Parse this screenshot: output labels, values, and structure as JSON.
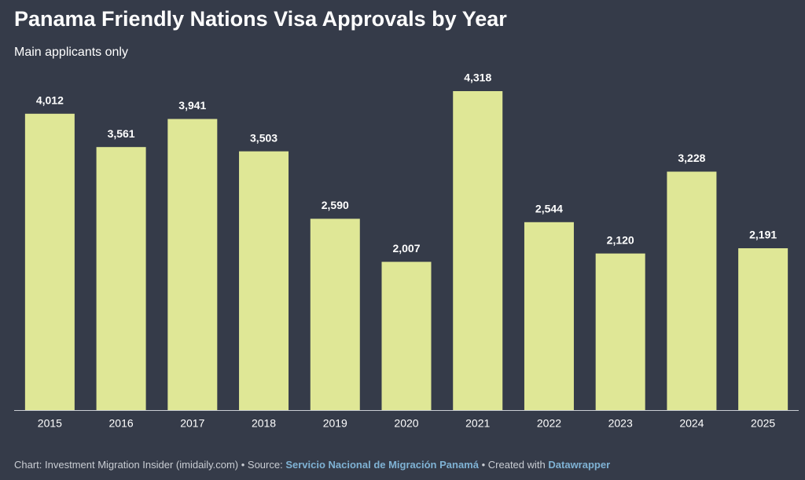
{
  "chart_data": {
    "type": "bar",
    "title": "Panama Friendly Nations Visa Approvals by Year",
    "subtitle": "Main applicants only",
    "categories": [
      "2015",
      "2016",
      "2017",
      "2018",
      "2019",
      "2020",
      "2021",
      "2022",
      "2023",
      "2024",
      "2025"
    ],
    "values": [
      4012,
      3561,
      3941,
      3503,
      2590,
      2007,
      4318,
      2544,
      2120,
      3228,
      2191
    ],
    "value_labels": [
      "4,012",
      "3,561",
      "3,941",
      "3,503",
      "2,590",
      "2,007",
      "4,318",
      "2,544",
      "2,120",
      "3,228",
      "2,191"
    ],
    "color": "#dfe796",
    "footer": {
      "credit": "Chart: Investment Migration Insider (imidaily.com) • Source:",
      "source": "Servicio Nacional de Migración Panamá",
      "created": "• Created with",
      "tool": "Datawrapper"
    }
  }
}
